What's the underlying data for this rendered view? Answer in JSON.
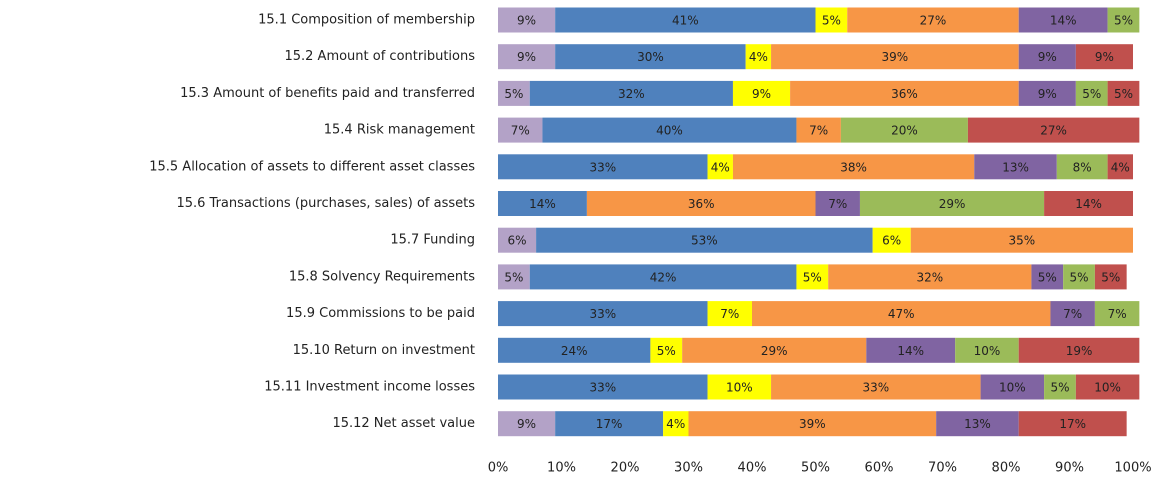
{
  "chart_data": {
    "type": "stacked_barh",
    "categories": [
      "15.1 Composition of membership",
      "15.2 Amount of contributions",
      "15.3 Amount of benefits paid and transferred",
      "15.4 Risk management",
      "15.5 Allocation of assets to different asset classes",
      "15.6 Transactions (purchases,  sales) of assets",
      "15.7 Funding",
      "15.8 Solvency Requirements",
      "15.9 Commissions to be paid",
      "15.10 Return on investment",
      "15.11 Investment income losses",
      "15.12 Net asset value"
    ],
    "series": [
      {
        "color": "#b3a2c7",
        "values": [
          9,
          9,
          5,
          7,
          0,
          0,
          6,
          5,
          0,
          0,
          0,
          9
        ],
        "value_labels": [
          "9%",
          "9%",
          "5%",
          "7%",
          null,
          null,
          "6%",
          "5%",
          null,
          null,
          null,
          "9%"
        ]
      },
      {
        "color": "#4f81bd",
        "values": [
          41,
          30,
          32,
          40,
          33,
          14,
          53,
          42,
          33,
          24,
          33,
          17
        ],
        "value_labels": [
          "41%",
          "30%",
          "32%",
          "40%",
          "33%",
          "14%",
          "53%",
          "42%",
          "33%",
          "24%",
          "33%",
          "17%"
        ]
      },
      {
        "color": "#ffff00",
        "values": [
          5,
          4,
          9,
          0,
          4,
          0,
          6,
          5,
          7,
          5,
          10,
          4
        ],
        "value_labels": [
          "5%",
          "4%",
          "9%",
          null,
          "4%",
          null,
          "6%",
          "5%",
          "7%",
          "5%",
          "10%",
          "4%"
        ]
      },
      {
        "color": "#f79646",
        "values": [
          27,
          39,
          36,
          7,
          38,
          36,
          35,
          32,
          47,
          29,
          33,
          39
        ],
        "value_labels": [
          "27%",
          "39%",
          "36%",
          "7%",
          "38%",
          "36%",
          "35%",
          "32%",
          "47%",
          "29%",
          "33%",
          "39%"
        ]
      },
      {
        "color": "#8064a2",
        "values": [
          14,
          9,
          9,
          0,
          13,
          7,
          0,
          5,
          7,
          14,
          10,
          13
        ],
        "value_labels": [
          "14%",
          "9%",
          "9%",
          null,
          "13%",
          "7%",
          null,
          "5%",
          "7%",
          "14%",
          "10%",
          "13%"
        ]
      },
      {
        "color": "#9bbb59",
        "values": [
          5,
          0,
          5,
          20,
          8,
          29,
          0,
          5,
          7,
          10,
          5,
          0
        ],
        "value_labels": [
          "5%",
          null,
          "5%",
          "20%",
          "8%",
          "29%",
          null,
          "5%",
          "7%",
          "10%",
          "5%",
          null
        ]
      },
      {
        "color": "#c0504d",
        "values": [
          0,
          9,
          5,
          27,
          4,
          14,
          0,
          5,
          0,
          19,
          10,
          17
        ],
        "value_labels": [
          null,
          "9%",
          "5%",
          "27%",
          "4%",
          "14%",
          null,
          "5%",
          null,
          "19%",
          "10%",
          "17%"
        ]
      }
    ],
    "xlim": [
      0,
      100
    ],
    "xticks": [
      {
        "value": 0,
        "label": "0%"
      },
      {
        "value": 10,
        "label": "10%"
      },
      {
        "value": 20,
        "label": "20%"
      },
      {
        "value": 30,
        "label": "30%"
      },
      {
        "value": 40,
        "label": "40%"
      },
      {
        "value": 50,
        "label": "50%"
      },
      {
        "value": 60,
        "label": "60%"
      },
      {
        "value": 70,
        "label": "70%"
      },
      {
        "value": 80,
        "label": "80%"
      },
      {
        "value": 90,
        "label": "90%"
      },
      {
        "value": 100,
        "label": "100%"
      }
    ]
  }
}
